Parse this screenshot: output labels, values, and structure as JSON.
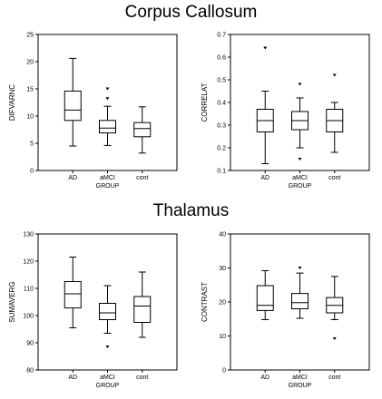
{
  "sections": [
    {
      "title": "Corpus Callosum"
    },
    {
      "title": "Thalamus"
    }
  ],
  "chart_data": [
    {
      "type": "boxplot",
      "title": "",
      "xlabel": "GROUP",
      "ylabel": "DIFVARNC",
      "categories": [
        "AD",
        "aMCI",
        "cont"
      ],
      "ylim": [
        0,
        25
      ],
      "yticks": [
        "0",
        "5",
        "10",
        "15",
        "20",
        "25"
      ],
      "boxes": [
        {
          "whisker_low": 4.5,
          "q1": 9.2,
          "median": 11.1,
          "q3": 14.6,
          "whisker_high": 20.6,
          "outliers": []
        },
        {
          "whisker_low": 4.6,
          "q1": 6.9,
          "median": 7.8,
          "q3": 9.2,
          "whisker_high": 11.8,
          "outliers": [
            13.2,
            15.0
          ]
        },
        {
          "whisker_low": 3.2,
          "q1": 6.2,
          "median": 7.7,
          "q3": 8.8,
          "whisker_high": 11.7,
          "outliers": []
        }
      ]
    },
    {
      "type": "boxplot",
      "title": "",
      "xlabel": "GROUP",
      "ylabel": "CORRELAT",
      "categories": [
        "AD",
        "aMCI",
        "cont"
      ],
      "ylim": [
        0.1,
        0.7
      ],
      "yticks": [
        "0.1",
        "0.2",
        "0.3",
        "0.4",
        "0.5",
        "0.6",
        "0.7"
      ],
      "boxes": [
        {
          "whisker_low": 0.13,
          "q1": 0.27,
          "median": 0.32,
          "q3": 0.37,
          "whisker_high": 0.45,
          "outliers": [
            0.64
          ]
        },
        {
          "whisker_low": 0.2,
          "q1": 0.28,
          "median": 0.32,
          "q3": 0.36,
          "whisker_high": 0.42,
          "outliers": [
            0.48,
            0.15
          ]
        },
        {
          "whisker_low": 0.18,
          "q1": 0.27,
          "median": 0.32,
          "q3": 0.37,
          "whisker_high": 0.4,
          "outliers": [
            0.52
          ]
        }
      ]
    },
    {
      "type": "boxplot",
      "title": "",
      "xlabel": "GROUP",
      "ylabel": "SUMAVERG",
      "categories": [
        "AD",
        "aMCI",
        "cont"
      ],
      "ylim": [
        80,
        130
      ],
      "yticks": [
        "80",
        "90",
        "100",
        "110",
        "120",
        "130"
      ],
      "boxes": [
        {
          "whisker_low": 95.5,
          "q1": 102.8,
          "median": 108.0,
          "q3": 112.5,
          "whisker_high": 121.5,
          "outliers": []
        },
        {
          "whisker_low": 93.5,
          "q1": 98.5,
          "median": 101.0,
          "q3": 104.5,
          "whisker_high": 111.0,
          "outliers": [
            88.5
          ]
        },
        {
          "whisker_low": 92.0,
          "q1": 97.5,
          "median": 103.5,
          "q3": 107.0,
          "whisker_high": 116.0,
          "outliers": []
        }
      ]
    },
    {
      "type": "boxplot",
      "title": "",
      "xlabel": "GROUP",
      "ylabel": "CONTRAST",
      "categories": [
        "AD",
        "aMCI",
        "cont"
      ],
      "ylim": [
        0,
        40
      ],
      "yticks": [
        "0",
        "10",
        "20",
        "30",
        "40"
      ],
      "boxes": [
        {
          "whisker_low": 14.8,
          "q1": 17.5,
          "median": 19.0,
          "q3": 24.8,
          "whisker_high": 29.2,
          "outliers": []
        },
        {
          "whisker_low": 15.2,
          "q1": 18.0,
          "median": 19.8,
          "q3": 22.5,
          "whisker_high": 28.5,
          "outliers": [
            30.0
          ]
        },
        {
          "whisker_low": 14.8,
          "q1": 16.8,
          "median": 19.0,
          "q3": 21.3,
          "whisker_high": 27.5,
          "outliers": [
            9.2
          ]
        }
      ]
    }
  ]
}
